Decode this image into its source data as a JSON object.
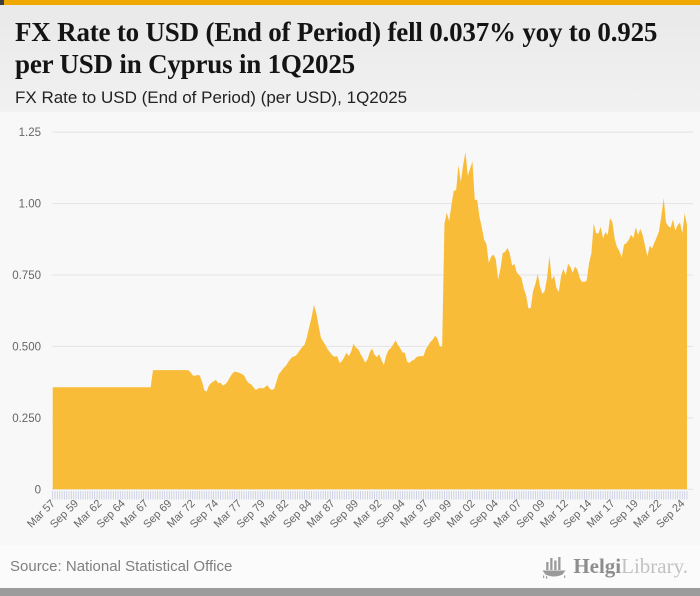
{
  "header": {
    "title": "FX Rate to USD (End of Period) fell 0.037% yoy to 0.925 per USD in Cyprus in 1Q2025",
    "subtitle": "FX Rate to USD (End of Period) (per USD), 1Q2025"
  },
  "footer": {
    "source": "Source: National Statistical Office",
    "logo_text_primary": "Helgi",
    "logo_text_secondary": "Library."
  },
  "colors": {
    "accent_gold": "#F0A802",
    "area_fill": "#F9BC39",
    "grid_line": "#e3e3e3",
    "tick_comb": "#c9cee3",
    "axis_label": "#666666",
    "bottom_bar": "#9C9C9C"
  },
  "chart_data": {
    "type": "area",
    "title": "FX Rate to USD (End of Period) (per USD), 1Q2025",
    "series_name": "FX Rate to USD (End of Period), per USD",
    "country": "Cyprus",
    "period": "1Q2025",
    "latest_value": 0.925,
    "yoy_change_pct": -0.037,
    "frequency": "quarterly",
    "x_start": "Mar 1957",
    "x_end": "Mar 2025",
    "ylim": [
      0,
      1.3
    ],
    "grid": true,
    "legend": false,
    "y_ticks": [
      0,
      0.25,
      0.5,
      0.75,
      1.0,
      1.25
    ],
    "y_tick_labels": [
      "0",
      "0.250",
      "0.500",
      "0.750",
      "1.00",
      "1.25"
    ],
    "x_tick_every": 10,
    "x_tick_labels": [
      "Mar 57",
      "Sep 59",
      "Mar 62",
      "Sep 64",
      "Mar 67",
      "Sep 69",
      "Mar 72",
      "Sep 74",
      "Mar 77",
      "Sep 79",
      "Mar 82",
      "Sep 84",
      "Mar 87",
      "Sep 89",
      "Mar 92",
      "Sep 94",
      "Mar 97",
      "Sep 99",
      "Mar 02",
      "Sep 04",
      "Mar 07",
      "Sep 09",
      "Mar 12",
      "Sep 14",
      "Mar 17",
      "Sep 19",
      "Mar 22",
      "Sep 24"
    ],
    "values": [
      0.357,
      0.357,
      0.357,
      0.357,
      0.357,
      0.357,
      0.357,
      0.357,
      0.357,
      0.357,
      0.357,
      0.357,
      0.357,
      0.357,
      0.357,
      0.357,
      0.357,
      0.357,
      0.357,
      0.357,
      0.357,
      0.357,
      0.357,
      0.357,
      0.357,
      0.357,
      0.357,
      0.357,
      0.357,
      0.357,
      0.357,
      0.357,
      0.357,
      0.357,
      0.357,
      0.357,
      0.357,
      0.357,
      0.357,
      0.357,
      0.357,
      0.357,
      0.357,
      0.417,
      0.417,
      0.417,
      0.417,
      0.417,
      0.417,
      0.417,
      0.417,
      0.417,
      0.417,
      0.417,
      0.417,
      0.417,
      0.417,
      0.417,
      0.417,
      0.411,
      0.399,
      0.397,
      0.4,
      0.399,
      0.378,
      0.347,
      0.342,
      0.363,
      0.372,
      0.378,
      0.383,
      0.371,
      0.373,
      0.363,
      0.368,
      0.377,
      0.392,
      0.405,
      0.412,
      0.41,
      0.408,
      0.404,
      0.399,
      0.383,
      0.372,
      0.368,
      0.358,
      0.348,
      0.352,
      0.355,
      0.353,
      0.357,
      0.365,
      0.353,
      0.347,
      0.352,
      0.378,
      0.404,
      0.413,
      0.425,
      0.432,
      0.445,
      0.457,
      0.464,
      0.466,
      0.475,
      0.487,
      0.498,
      0.506,
      0.532,
      0.568,
      0.601,
      0.645,
      0.618,
      0.574,
      0.531,
      0.517,
      0.504,
      0.489,
      0.479,
      0.468,
      0.464,
      0.466,
      0.442,
      0.448,
      0.462,
      0.478,
      0.466,
      0.482,
      0.51,
      0.496,
      0.49,
      0.474,
      0.46,
      0.443,
      0.455,
      0.48,
      0.493,
      0.471,
      0.463,
      0.473,
      0.452,
      0.435,
      0.468,
      0.487,
      0.494,
      0.507,
      0.521,
      0.506,
      0.494,
      0.479,
      0.478,
      0.447,
      0.442,
      0.45,
      0.454,
      0.462,
      0.466,
      0.466,
      0.466,
      0.49,
      0.503,
      0.516,
      0.524,
      0.538,
      0.527,
      0.5,
      0.5,
      0.931,
      0.968,
      0.938,
      0.995,
      1.046,
      1.046,
      1.135,
      1.075,
      1.135,
      1.18,
      1.097,
      1.123,
      1.147,
      1.012,
      1.014,
      0.954,
      0.917,
      0.874,
      0.858,
      0.792,
      0.814,
      0.822,
      0.805,
      0.734,
      0.772,
      0.827,
      0.831,
      0.845,
      0.825,
      0.783,
      0.789,
      0.759,
      0.75,
      0.74,
      0.703,
      0.679,
      0.633,
      0.635,
      0.694,
      0.719,
      0.754,
      0.709,
      0.684,
      0.694,
      0.74,
      0.817,
      0.733,
      0.748,
      0.706,
      0.69,
      0.746,
      0.772,
      0.749,
      0.79,
      0.778,
      0.758,
      0.78,
      0.769,
      0.739,
      0.726,
      0.726,
      0.731,
      0.792,
      0.826,
      0.93,
      0.897,
      0.895,
      0.919,
      0.878,
      0.9,
      0.89,
      0.949,
      0.935,
      0.876,
      0.847,
      0.834,
      0.812,
      0.857,
      0.861,
      0.873,
      0.891,
      0.879,
      0.917,
      0.891,
      0.911,
      0.89,
      0.853,
      0.815,
      0.853,
      0.843,
      0.863,
      0.882,
      0.904,
      0.956,
      1.02,
      0.934,
      0.921,
      0.916,
      0.945,
      0.906,
      0.925,
      0.934,
      0.896,
      0.966,
      0.925
    ]
  }
}
